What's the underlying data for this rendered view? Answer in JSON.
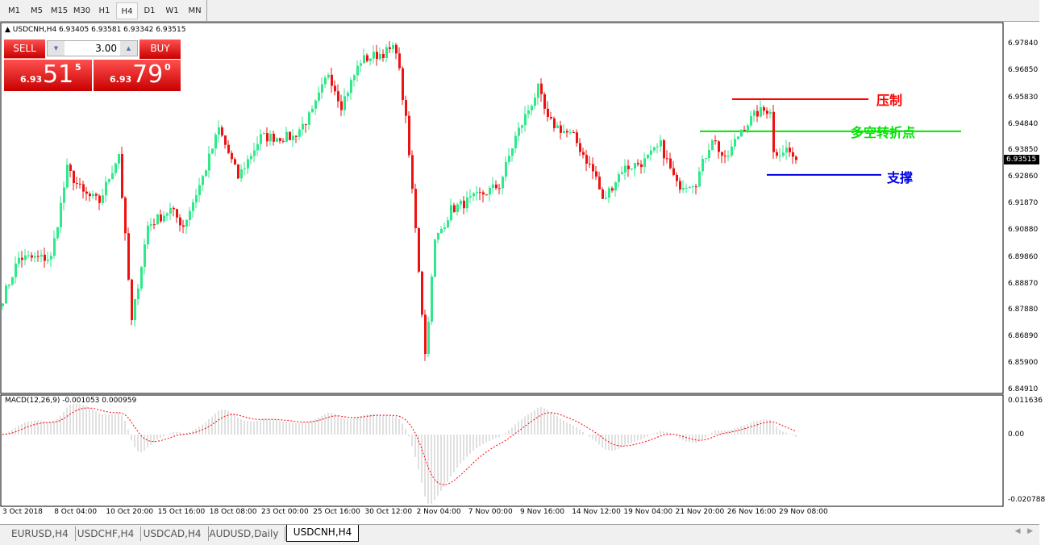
{
  "toolbar": {
    "timeframes": [
      "M1",
      "M5",
      "M15",
      "M30",
      "H1",
      "H4",
      "D1",
      "W1",
      "MN"
    ],
    "active": "H4"
  },
  "symbol_line": "USDCNH,H4  6.93405 6.93581 6.93342 6.93515",
  "trade_panel": {
    "sell_label": "SELL",
    "buy_label": "BUY",
    "lot": "3.00",
    "sell": {
      "prefix": "6.93",
      "big": "51",
      "sup": "5"
    },
    "buy": {
      "prefix": "6.93",
      "big": "79",
      "sup": "0"
    }
  },
  "price_axis": [
    "6.97840",
    "6.96850",
    "6.95830",
    "6.94840",
    "6.93850",
    "6.92860",
    "6.91870",
    "6.90880",
    "6.89860",
    "6.88870",
    "6.87880",
    "6.86890",
    "6.85900",
    "6.84910"
  ],
  "current_price": "6.93515",
  "macd": {
    "label": "MACD(12,26,9) -0.001053 0.000959",
    "axis": [
      "0.011636",
      "0.00",
      "-0.020788"
    ]
  },
  "time_axis": [
    "3 Oct 2018",
    "8 Oct 04:00",
    "10 Oct 20:00",
    "15 Oct 16:00",
    "18 Oct 08:00",
    "23 Oct 00:00",
    "25 Oct 16:00",
    "30 Oct 12:00",
    "2 Nov 04:00",
    "7 Nov 00:00",
    "9 Nov 16:00",
    "14 Nov 12:00",
    "19 Nov 04:00",
    "21 Nov 20:00",
    "26 Nov 16:00",
    "29 Nov 08:00"
  ],
  "annotations": [
    {
      "text": "压制",
      "price": 6.9579,
      "color": "#ff0000"
    },
    {
      "text": "多空转折点",
      "price": 6.9459,
      "color": "#00e600"
    },
    {
      "text": "支撑",
      "price": 6.9296,
      "color": "#0000e0"
    }
  ],
  "colors": {
    "bull": "#2ee88a",
    "bear": "#ee1111",
    "macd_hist": "#c0c0c0",
    "signal": "#ff0000"
  },
  "tabs": [
    "EURUSD,H4",
    "USDCHF,H4",
    "USDCAD,H4",
    "AUDUSD,Daily",
    "USDCNH,H4"
  ],
  "active_tab": "USDCNH,H4",
  "chart_data": {
    "type": "candlestick",
    "timeframe": "H4",
    "symbol": "USDCNH",
    "close_anchors": [
      [
        0,
        6.8835
      ],
      [
        5,
        6.8985
      ],
      [
        15,
        6.8985
      ],
      [
        20,
        6.9317
      ],
      [
        25,
        6.9226
      ],
      [
        30,
        6.9196
      ],
      [
        36,
        6.9377
      ],
      [
        40,
        6.8744
      ],
      [
        45,
        6.9106
      ],
      [
        52,
        6.9166
      ],
      [
        56,
        6.9106
      ],
      [
        62,
        6.9287
      ],
      [
        67,
        6.9468
      ],
      [
        73,
        6.9287
      ],
      [
        80,
        6.9437
      ],
      [
        90,
        6.9437
      ],
      [
        96,
        6.9528
      ],
      [
        101,
        6.9679
      ],
      [
        105,
        6.9558
      ],
      [
        111,
        6.9724
      ],
      [
        122,
        6.9769
      ],
      [
        125,
        6.9498
      ],
      [
        128,
        6.9106
      ],
      [
        131,
        6.8624
      ],
      [
        134,
        6.9046
      ],
      [
        139,
        6.9166
      ],
      [
        149,
        6.9226
      ],
      [
        154,
        6.9257
      ],
      [
        159,
        6.9437
      ],
      [
        166,
        6.9618
      ],
      [
        169,
        6.9498
      ],
      [
        177,
        6.9437
      ],
      [
        184,
        6.9287
      ],
      [
        186,
        6.9196
      ],
      [
        192,
        6.9317
      ],
      [
        199,
        6.9347
      ],
      [
        204,
        6.9407
      ],
      [
        209,
        6.9257
      ],
      [
        215,
        6.9272
      ],
      [
        220,
        6.9437
      ],
      [
        224,
        6.9347
      ],
      [
        229,
        6.9468
      ],
      [
        234,
        6.9528
      ],
      [
        238,
        6.9543
      ],
      [
        239,
        6.9377
      ],
      [
        243,
        6.9392
      ],
      [
        246,
        6.9351
      ]
    ],
    "ylim": [
      6.8491,
      6.9784
    ]
  }
}
